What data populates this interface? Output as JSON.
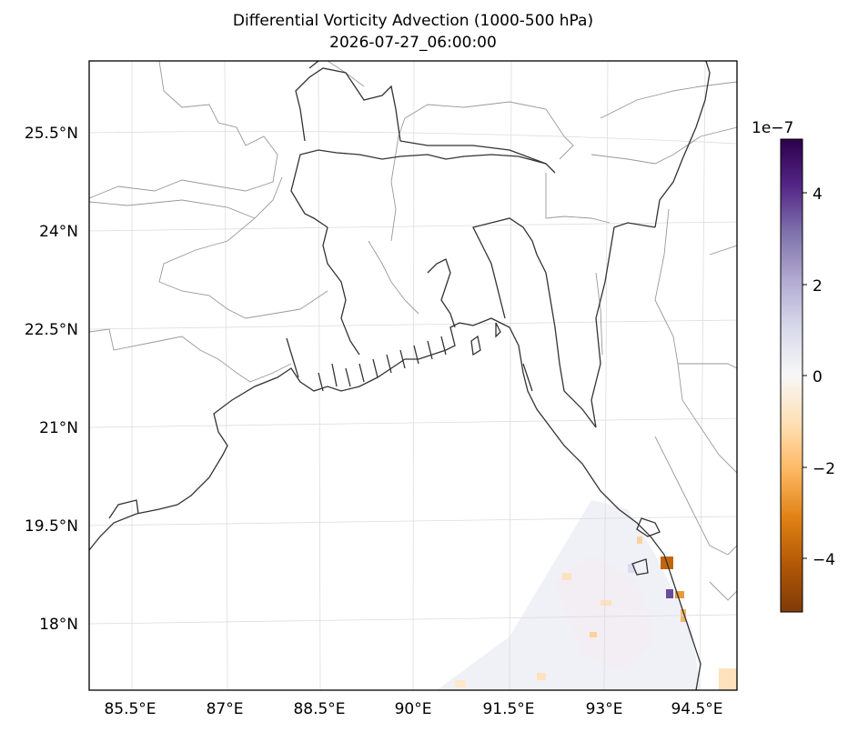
{
  "title": {
    "line1": "Differential Vorticity Advection (1000-500 hPa)",
    "line2": "2026-07-27_06:00:00"
  },
  "map": {
    "lat_ticks": [
      "25.5°N",
      "24°N",
      "22.5°N",
      "21°N",
      "19.5°N",
      "18°N"
    ],
    "lon_ticks": [
      "85.5°E",
      "87°E",
      "88.5°E",
      "90°E",
      "91.5°E",
      "93°E",
      "94.5°E"
    ]
  },
  "colorbar": {
    "exponent": "1e−7",
    "ticks": [
      "4",
      "2",
      "0",
      "−2",
      "−4"
    ],
    "colors": [
      "#2d004b",
      "#542788",
      "#8073ac",
      "#b2abd2",
      "#d8daeb",
      "#f7f7f7",
      "#fee0b6",
      "#fdb863",
      "#e08214",
      "#b35806",
      "#7f3b08"
    ]
  }
}
